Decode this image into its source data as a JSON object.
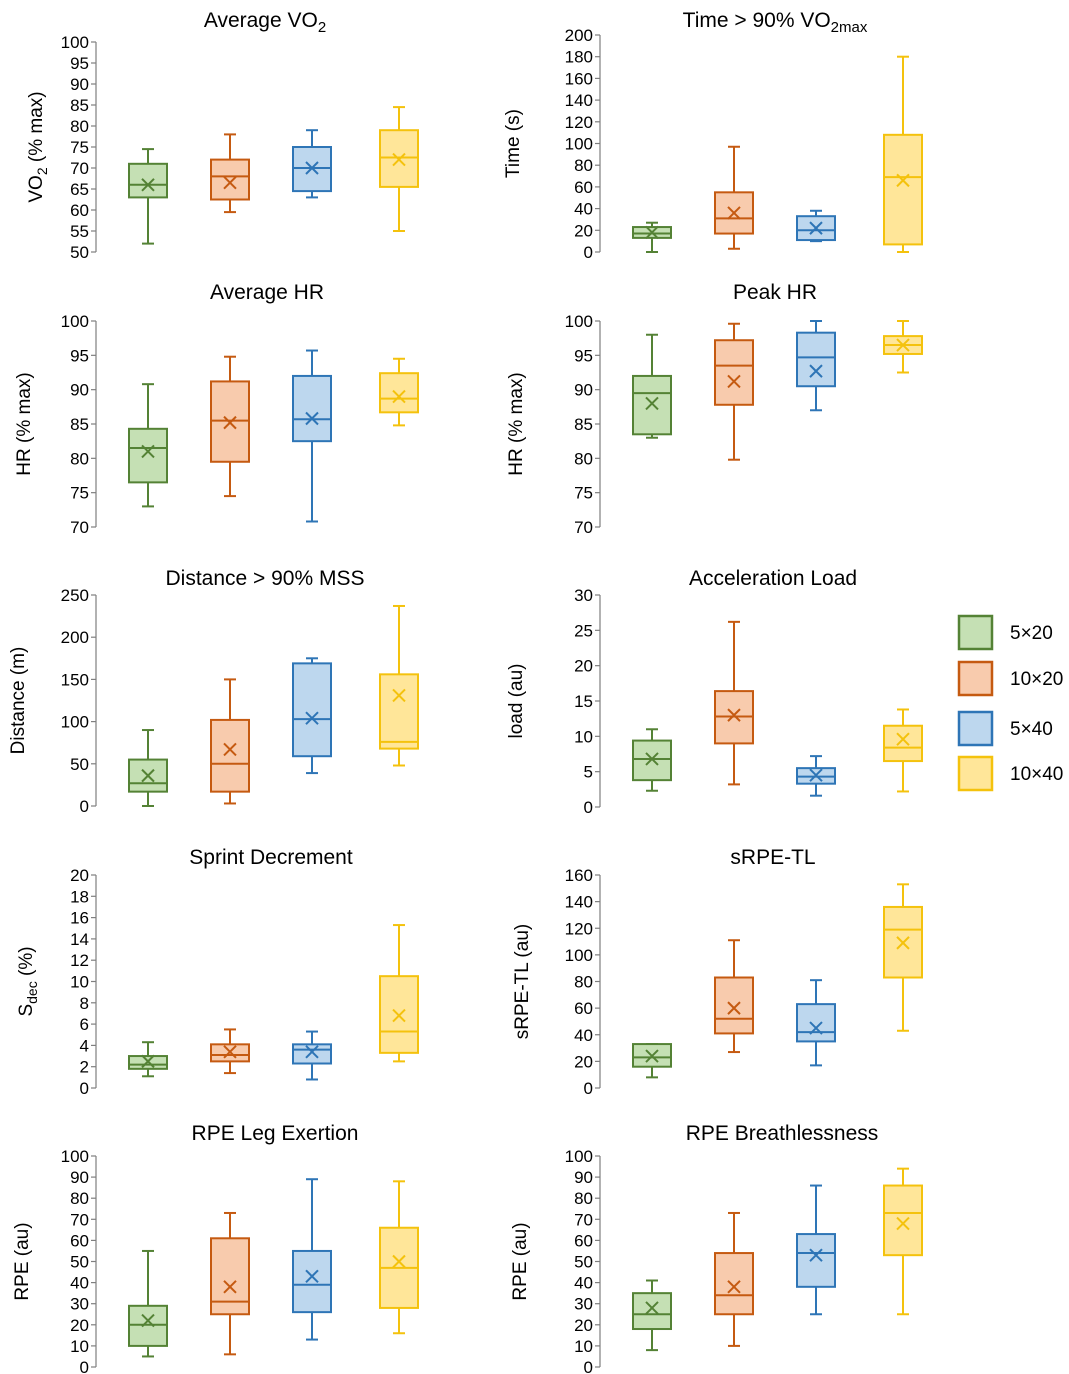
{
  "chart_data": [
    {
      "type": "box",
      "title": "Average VO",
      "title_sub": "2",
      "ylabel": "VO",
      "ylabel_sub": "2",
      "ylabel_tail": " (% max)",
      "ylim": [
        50,
        100
      ],
      "ticks": [
        "50",
        "55",
        "60",
        "65",
        "70",
        "75",
        "80",
        "85",
        "90",
        "95",
        "100"
      ],
      "boxes": [
        {
          "group": "5×20",
          "min": 52,
          "q1": 63,
          "median": 66,
          "q3": 71,
          "max": 74.5,
          "mean": 66
        },
        {
          "group": "10×20",
          "min": 59.5,
          "q1": 62.5,
          "median": 68,
          "q3": 72,
          "max": 78,
          "mean": 66.5
        },
        {
          "group": "5×40",
          "min": 63,
          "q1": 64.5,
          "median": 70,
          "q3": 75,
          "max": 79,
          "mean": 70
        },
        {
          "group": "10×40",
          "min": 55,
          "q1": 65.5,
          "median": 72.5,
          "q3": 79,
          "max": 84.5,
          "mean": 72
        }
      ]
    },
    {
      "type": "box",
      "title": "Time > 90% VO",
      "title_sub": "2max",
      "ylabel": "Time (s)",
      "ylim": [
        0,
        200
      ],
      "ticks": [
        "0",
        "20",
        "40",
        "60",
        "80",
        "100",
        "120",
        "140",
        "160",
        "180",
        "200"
      ],
      "boxes": [
        {
          "group": "5×20",
          "min": 0,
          "q1": 13,
          "median": 17,
          "q3": 23,
          "max": 27,
          "mean": 18
        },
        {
          "group": "10×20",
          "min": 3,
          "q1": 17,
          "median": 31,
          "q3": 55,
          "max": 97,
          "mean": 36
        },
        {
          "group": "5×40",
          "min": 10,
          "q1": 11,
          "median": 20,
          "q3": 33,
          "max": 38,
          "mean": 22
        },
        {
          "group": "10×40",
          "min": 0,
          "q1": 7,
          "median": 69,
          "q3": 108,
          "max": 180,
          "mean": 66
        }
      ]
    },
    {
      "type": "box",
      "title": "Average HR",
      "ylabel": "HR (% max)",
      "ylim": [
        70,
        100
      ],
      "ticks": [
        "70",
        "75",
        "80",
        "85",
        "90",
        "95",
        "100"
      ],
      "boxes": [
        {
          "group": "5×20",
          "min": 73,
          "q1": 76.5,
          "median": 81.5,
          "q3": 84.3,
          "max": 90.8,
          "mean": 81
        },
        {
          "group": "10×20",
          "min": 74.5,
          "q1": 79.5,
          "median": 85.5,
          "q3": 91.2,
          "max": 94.8,
          "mean": 85.2
        },
        {
          "group": "5×40",
          "min": 70.8,
          "q1": 82.5,
          "median": 85.7,
          "q3": 92,
          "max": 95.7,
          "mean": 85.8
        },
        {
          "group": "10×40",
          "min": 84.8,
          "q1": 86.7,
          "median": 88.7,
          "q3": 92.4,
          "max": 94.5,
          "mean": 89
        }
      ]
    },
    {
      "type": "box",
      "title": "Peak HR",
      "ylabel": "HR (% max)",
      "ylim": [
        70,
        100
      ],
      "ticks": [
        "70",
        "75",
        "80",
        "85",
        "90",
        "95",
        "100"
      ],
      "boxes": [
        {
          "group": "5×20",
          "min": 83,
          "q1": 83.5,
          "median": 89.5,
          "q3": 92,
          "max": 98,
          "mean": 88
        },
        {
          "group": "10×20",
          "min": 79.8,
          "q1": 87.8,
          "median": 93.5,
          "q3": 97.2,
          "max": 99.6,
          "mean": 91.2
        },
        {
          "group": "5×40",
          "min": 87,
          "q1": 90.5,
          "median": 94.7,
          "q3": 98.3,
          "max": 100,
          "mean": 92.7
        },
        {
          "group": "10×40",
          "min": 92.5,
          "q1": 95.2,
          "median": 96.5,
          "q3": 97.8,
          "max": 100,
          "mean": 96.5
        }
      ]
    },
    {
      "type": "box",
      "title": "Distance > 90% MSS",
      "ylabel": "Distance (m)",
      "ylim": [
        0,
        250
      ],
      "ticks": [
        "0",
        "50",
        "100",
        "150",
        "200",
        "250"
      ],
      "boxes": [
        {
          "group": "5×20",
          "min": 0,
          "q1": 17,
          "median": 27,
          "q3": 55,
          "max": 90,
          "mean": 36
        },
        {
          "group": "10×20",
          "min": 3,
          "q1": 17,
          "median": 50,
          "q3": 102,
          "max": 150,
          "mean": 67
        },
        {
          "group": "5×40",
          "min": 39,
          "q1": 59,
          "median": 103,
          "q3": 169,
          "max": 175,
          "mean": 104
        },
        {
          "group": "10×40",
          "min": 48,
          "q1": 68,
          "median": 76,
          "q3": 156,
          "max": 237,
          "mean": 131
        }
      ]
    },
    {
      "type": "box",
      "title": "Acceleration Load",
      "ylabel": "load (au)",
      "ylim": [
        0,
        30
      ],
      "ticks": [
        "0",
        "5",
        "10",
        "15",
        "20",
        "25",
        "30"
      ],
      "boxes": [
        {
          "group": "5×20",
          "min": 2.3,
          "q1": 3.8,
          "median": 6.8,
          "q3": 9.4,
          "max": 11,
          "mean": 6.8
        },
        {
          "group": "10×20",
          "min": 3.2,
          "q1": 9,
          "median": 12.8,
          "q3": 16.4,
          "max": 26.2,
          "mean": 13
        },
        {
          "group": "5×40",
          "min": 1.6,
          "q1": 3.3,
          "median": 4.3,
          "q3": 5.5,
          "max": 7.2,
          "mean": 4.5
        },
        {
          "group": "10×40",
          "min": 2.2,
          "q1": 6.5,
          "median": 8.4,
          "q3": 11.5,
          "max": 13.8,
          "mean": 9.6
        }
      ]
    },
    {
      "type": "box",
      "title": "Sprint Decrement",
      "ylabel": "S",
      "ylabel_sub": "dec",
      "ylabel_tail": " (%)",
      "ylim": [
        0,
        20
      ],
      "ticks": [
        "0",
        "2",
        "4",
        "6",
        "8",
        "10",
        "12",
        "14",
        "16",
        "18",
        "20"
      ],
      "boxes": [
        {
          "group": "5×20",
          "min": 1.1,
          "q1": 1.8,
          "median": 2.2,
          "q3": 3,
          "max": 4.3,
          "mean": 2.5
        },
        {
          "group": "10×20",
          "min": 1.4,
          "q1": 2.5,
          "median": 3.1,
          "q3": 4.1,
          "max": 5.5,
          "mean": 3.4
        },
        {
          "group": "5×40",
          "min": 0.8,
          "q1": 2.3,
          "median": 3.6,
          "q3": 4.1,
          "max": 5.3,
          "mean": 3.4
        },
        {
          "group": "10×40",
          "min": 2.5,
          "q1": 3.3,
          "median": 5.3,
          "q3": 10.5,
          "max": 15.3,
          "mean": 6.8
        }
      ]
    },
    {
      "type": "box",
      "title": "sRPE-TL",
      "ylabel": "sRPE-TL (au)",
      "ylim": [
        0,
        160
      ],
      "ticks": [
        "0",
        "20",
        "40",
        "60",
        "80",
        "100",
        "120",
        "140",
        "160"
      ],
      "boxes": [
        {
          "group": "5×20",
          "min": 8,
          "q1": 16,
          "median": 23,
          "q3": 33,
          "max": 33,
          "mean": 24
        },
        {
          "group": "10×20",
          "min": 27,
          "q1": 41,
          "median": 52,
          "q3": 83,
          "max": 111,
          "mean": 60
        },
        {
          "group": "5×40",
          "min": 17,
          "q1": 35,
          "median": 42,
          "q3": 63,
          "max": 81,
          "mean": 45
        },
        {
          "group": "10×40",
          "min": 43,
          "q1": 83,
          "median": 119,
          "q3": 136,
          "max": 153,
          "mean": 109
        }
      ]
    },
    {
      "type": "box",
      "title": "RPE Leg Exertion",
      "ylabel": "RPE (au)",
      "ylim": [
        0,
        100
      ],
      "ticks": [
        "0",
        "10",
        "20",
        "30",
        "40",
        "50",
        "60",
        "70",
        "80",
        "90",
        "100"
      ],
      "boxes": [
        {
          "group": "5×20",
          "min": 5,
          "q1": 10,
          "median": 20,
          "q3": 29,
          "max": 55,
          "mean": 22
        },
        {
          "group": "10×20",
          "min": 6,
          "q1": 25,
          "median": 31,
          "q3": 61,
          "max": 73,
          "mean": 38
        },
        {
          "group": "5×40",
          "min": 13,
          "q1": 26,
          "median": 39,
          "q3": 55,
          "max": 89,
          "mean": 43
        },
        {
          "group": "10×40",
          "min": 16,
          "q1": 28,
          "median": 47,
          "q3": 66,
          "max": 88,
          "mean": 50
        }
      ]
    },
    {
      "type": "box",
      "title": "RPE Breathlessness",
      "ylabel": "RPE (au)",
      "ylim": [
        0,
        100
      ],
      "ticks": [
        "0",
        "10",
        "20",
        "30",
        "40",
        "50",
        "60",
        "70",
        "80",
        "90",
        "100"
      ],
      "boxes": [
        {
          "group": "5×20",
          "min": 8,
          "q1": 18,
          "median": 25,
          "q3": 35,
          "max": 41,
          "mean": 28
        },
        {
          "group": "10×20",
          "min": 10,
          "q1": 25,
          "median": 34,
          "q3": 54,
          "max": 73,
          "mean": 38
        },
        {
          "group": "5×40",
          "min": 25,
          "q1": 38,
          "median": 54,
          "q3": 63,
          "max": 86,
          "mean": 53
        },
        {
          "group": "10×40",
          "min": 25,
          "q1": 53,
          "median": 73,
          "q3": 86,
          "max": 94,
          "mean": 68
        }
      ]
    }
  ],
  "legend": {
    "position": "right",
    "items": [
      {
        "label": "5×20",
        "stroke": "#548235",
        "fill": "#c5e0b4"
      },
      {
        "label": "10×20",
        "stroke": "#c55a11",
        "fill": "#f8cbad"
      },
      {
        "label": "5×40",
        "stroke": "#2e75b6",
        "fill": "#bdd7ee"
      },
      {
        "label": "10×40",
        "stroke": "#f4c20d",
        "fill": "#ffe699"
      }
    ]
  }
}
